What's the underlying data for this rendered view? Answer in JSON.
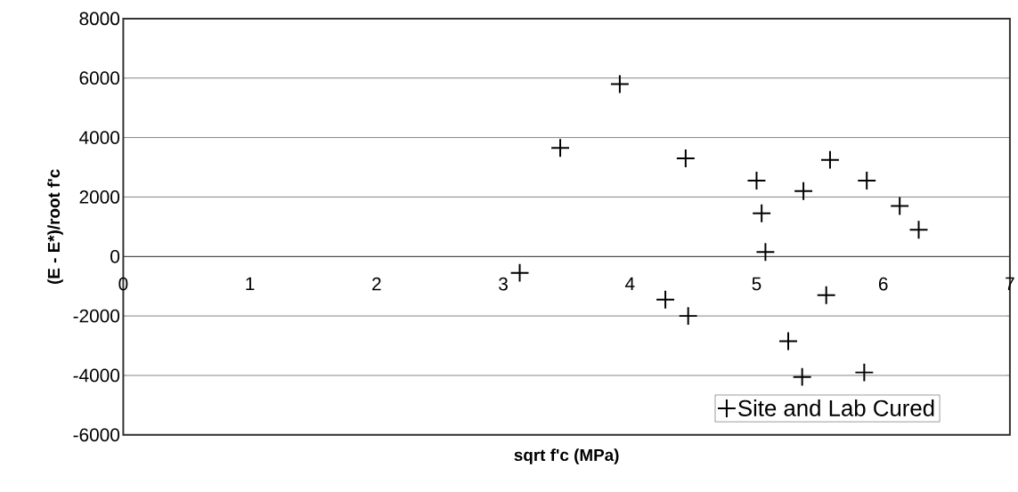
{
  "chart_data": {
    "type": "scatter",
    "xlabel": "sqrt f'c (MPa)",
    "ylabel": "(E - E*)/root f'c",
    "x": [
      3.13,
      3.45,
      3.92,
      4.28,
      4.44,
      4.46,
      5.0,
      5.04,
      5.07,
      5.25,
      5.36,
      5.37,
      5.55,
      5.58,
      5.85,
      5.87,
      6.13,
      6.28
    ],
    "series": [
      {
        "name": "Site and Lab Cured",
        "color": "#000000",
        "values": [
          -550,
          3650,
          5800,
          -1450,
          3300,
          -2000,
          2550,
          1450,
          150,
          -2850,
          -4050,
          2200,
          -1300,
          3250,
          -3900,
          2550,
          1700,
          900
        ]
      }
    ],
    "xlim": [
      0,
      7
    ],
    "ylim": [
      -6000,
      8000
    ],
    "xticks": [
      0,
      1,
      2,
      3,
      4,
      5,
      6,
      7
    ],
    "yticks": [
      -6000,
      -4000,
      -2000,
      0,
      2000,
      4000,
      6000,
      8000
    ],
    "grid": "y",
    "legend": "bottom right",
    "marker": "cross"
  }
}
